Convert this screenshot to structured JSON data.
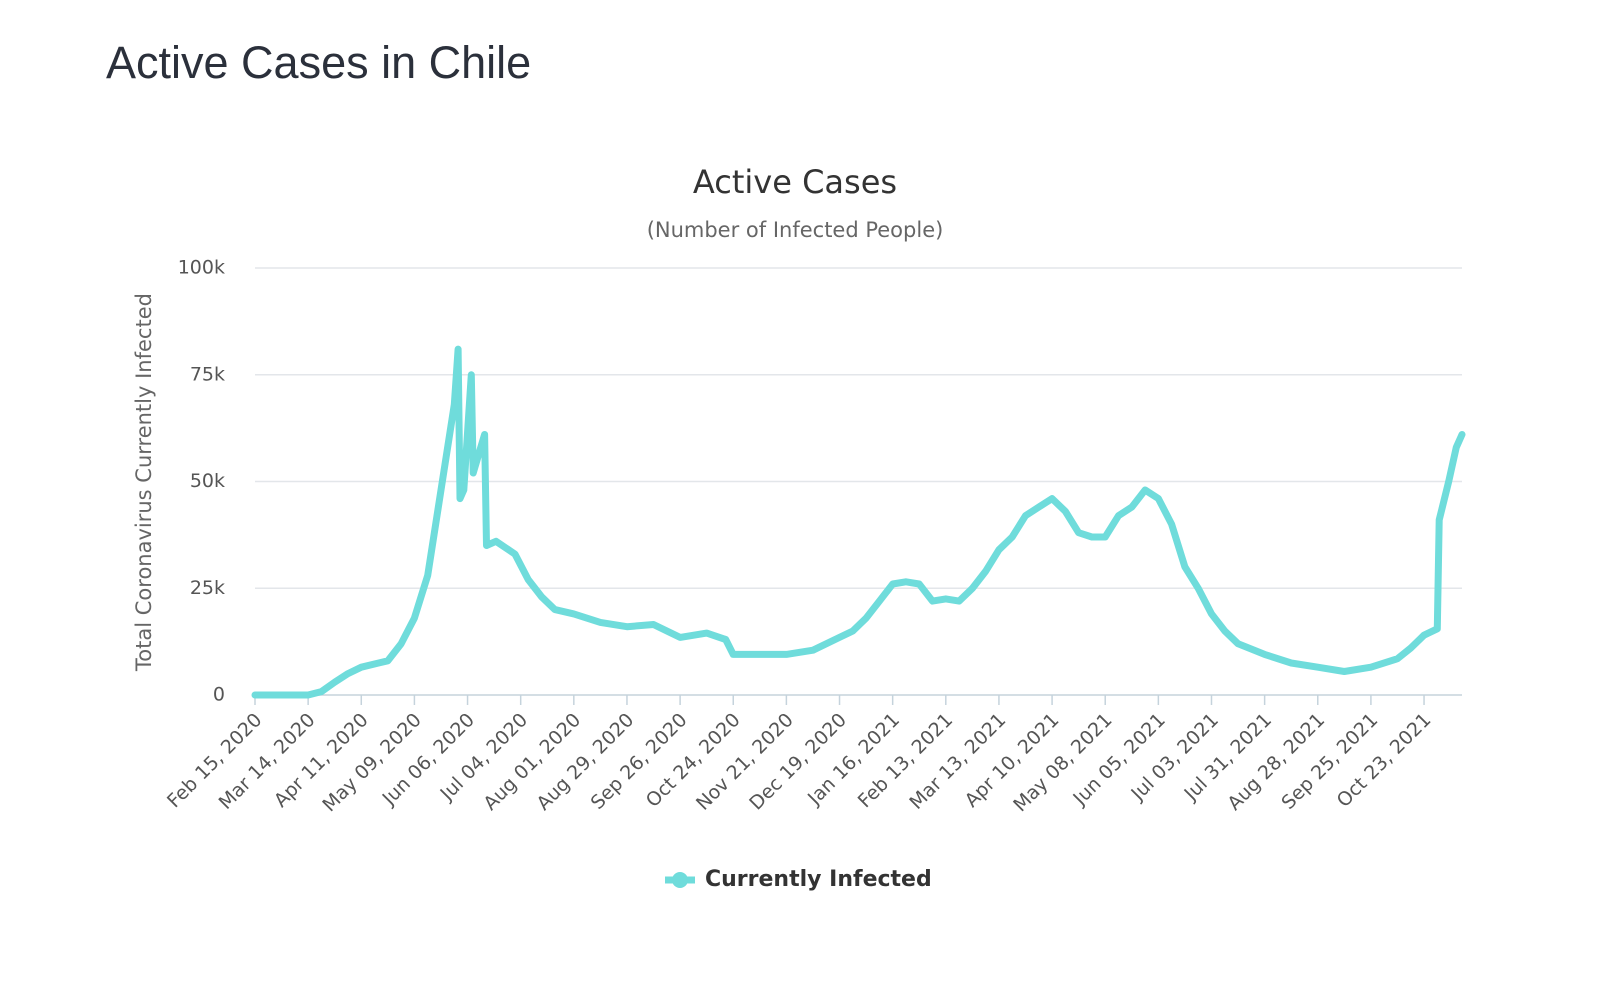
{
  "page_title": "Active Cases in Chile",
  "chart_data": {
    "type": "line",
    "title": "Active Cases",
    "subtitle": "(Number of Infected People)",
    "y_axis_label": "Total Coronavirus Currently Infected",
    "x": [
      "Feb 15, 2020",
      "Mar 14, 2020",
      "Mar 21, 2020",
      "Mar 28, 2020",
      "Apr 04, 2020",
      "Apr 11, 2020",
      "Apr 25, 2020",
      "May 02, 2020",
      "May 09, 2020",
      "May 16, 2020",
      "May 23, 2020",
      "May 30, 2020",
      "Jun 01, 2020",
      "Jun 02, 2020",
      "Jun 04, 2020",
      "Jun 08, 2020",
      "Jun 09, 2020",
      "Jun 13, 2020",
      "Jun 15, 2020",
      "Jun 16, 2020",
      "Jun 21, 2020",
      "Jul 01, 2020",
      "Jul 08, 2020",
      "Jul 15, 2020",
      "Jul 22, 2020",
      "Aug 01, 2020",
      "Aug 15, 2020",
      "Aug 29, 2020",
      "Sep 12, 2020",
      "Sep 26, 2020",
      "Oct 10, 2020",
      "Oct 20, 2020",
      "Oct 24, 2020",
      "Nov 07, 2020",
      "Nov 21, 2020",
      "Dec 05, 2020",
      "Dec 19, 2020",
      "Dec 26, 2020",
      "Jan 02, 2021",
      "Jan 09, 2021",
      "Jan 16, 2021",
      "Jan 23, 2021",
      "Jan 30, 2021",
      "Feb 06, 2021",
      "Feb 13, 2021",
      "Feb 20, 2021",
      "Feb 27, 2021",
      "Mar 06, 2021",
      "Mar 13, 2021",
      "Mar 20, 2021",
      "Mar 27, 2021",
      "Apr 03, 2021",
      "Apr 10, 2021",
      "Apr 17, 2021",
      "Apr 24, 2021",
      "May 01, 2021",
      "May 08, 2021",
      "May 15, 2021",
      "May 22, 2021",
      "May 29, 2021",
      "Jun 05, 2021",
      "Jun 12, 2021",
      "Jun 19, 2021",
      "Jun 26, 2021",
      "Jul 03, 2021",
      "Jul 10, 2021",
      "Jul 17, 2021",
      "Jul 31, 2021",
      "Aug 14, 2021",
      "Aug 28, 2021",
      "Sep 11, 2021",
      "Sep 25, 2021",
      "Oct 09, 2021",
      "Oct 16, 2021",
      "Oct 23, 2021",
      "Oct 30, 2021",
      "Oct 31, 2021",
      "Nov 05, 2021",
      "Nov 09, 2021",
      "Nov 12, 2021"
    ],
    "series": [
      {
        "name": "Currently Infected",
        "color": "#6fdcdb",
        "values": [
          0,
          0,
          800,
          3000,
          5000,
          6500,
          8000,
          12000,
          18000,
          28000,
          48000,
          68000,
          81000,
          46000,
          48000,
          75000,
          52000,
          58000,
          61000,
          35000,
          36000,
          33000,
          27000,
          23000,
          20000,
          19000,
          17000,
          16000,
          16500,
          13500,
          14500,
          13000,
          9500,
          9500,
          9500,
          10500,
          13500,
          15000,
          18000,
          22000,
          26000,
          26500,
          26000,
          22000,
          22500,
          22000,
          25000,
          29000,
          34000,
          37000,
          42000,
          44000,
          46000,
          43000,
          38000,
          37000,
          37000,
          42000,
          44000,
          48000,
          46000,
          40000,
          30000,
          25000,
          19000,
          15000,
          12000,
          9500,
          7500,
          6500,
          5500,
          6500,
          8500,
          11000,
          14000,
          15500,
          41000,
          50000,
          58000,
          61000
        ]
      }
    ],
    "xlim": [
      "Feb 15, 2020",
      "Nov 12, 2021"
    ],
    "xticks": [
      "Feb 15, 2020",
      "Mar 14, 2020",
      "Apr 11, 2020",
      "May 09, 2020",
      "Jun 06, 2020",
      "Jul 04, 2020",
      "Aug 01, 2020",
      "Aug 29, 2020",
      "Sep 26, 2020",
      "Oct 24, 2020",
      "Nov 21, 2020",
      "Dec 19, 2020",
      "Jan 16, 2021",
      "Feb 13, 2021",
      "Mar 13, 2021",
      "Apr 10, 2021",
      "May 08, 2021",
      "Jun 05, 2021",
      "Jul 03, 2021",
      "Jul 31, 2021",
      "Aug 28, 2021",
      "Sep 25, 2021",
      "Oct 23, 2021"
    ],
    "ylim": [
      0,
      100000
    ],
    "yticks": [
      0,
      {
        "value": 25000,
        "label": "25k"
      },
      {
        "value": 50000,
        "label": "50k"
      },
      {
        "value": 75000,
        "label": "75k"
      },
      {
        "value": 100000,
        "label": "100k"
      }
    ],
    "grid": true
  }
}
